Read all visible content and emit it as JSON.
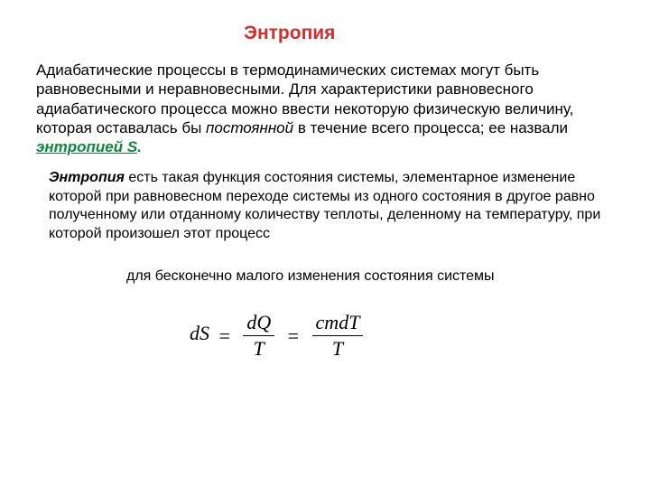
{
  "colors": {
    "title": "#d62d2d",
    "term_green": "#0f8a3c",
    "text": "#000000",
    "background": "#ffffff"
  },
  "title": "Энтропия",
  "para1": {
    "t1": "Адиабатические процессы в термодинамических системах могут быть равновесными и неравновесными. Для характеристики равновесного адиабатического процесса можно ввести некоторую физическую величину, которая оставалась бы ",
    "const_word": "постоянной",
    "t2": " в течение всего процесса; ее назвали ",
    "entropy_word": "энтропией S",
    "dot": "."
  },
  "para2": {
    "lead": "Энтропия",
    "rest": " есть такая функция состояния системы, элементарное изменение которой при равновесном переходе системы из одного состояния в другое равно полученному или отданному количеству теплоты, деленному на температуру, при которой произошел этот процесс"
  },
  "para3": "для бесконечно малого изменения состояния системы",
  "formula": {
    "lhs": "dS",
    "eq1": "=",
    "frac1_num": "dQ",
    "frac1_den": "T",
    "eq2": "=",
    "frac2_num": "cmdT",
    "frac2_den": "T"
  }
}
